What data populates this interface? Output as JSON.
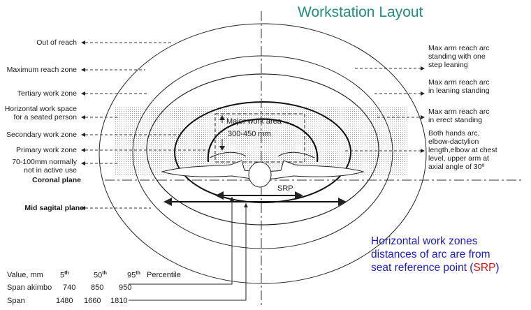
{
  "title": "Workstation Layout",
  "left_labels": [
    {
      "text": "Out of reach"
    },
    {
      "text": "Maximum reach zone"
    },
    {
      "text": "Tertiary work zone"
    },
    {
      "text": "Horizontal work space"
    },
    {
      "text": "for a seated person"
    },
    {
      "text": "Secondary work zone"
    },
    {
      "text": "Primary work zone"
    },
    {
      "text": "70-100mm normally"
    },
    {
      "text": "not in active use"
    },
    {
      "text": "Coronal plane"
    },
    {
      "text": "Mid sagital plane"
    }
  ],
  "right_labels": [
    {
      "lines": [
        "Max arm reach arc",
        "standing with one",
        "step leaning"
      ]
    },
    {
      "lines": [
        "Max arm reach arc",
        "in leaning standing"
      ]
    },
    {
      "lines": [
        "Max arm reach arc",
        "in erect standing"
      ]
    },
    {
      "lines": [
        "Both hands arc,",
        "elbow-dactylion",
        "length,elbow at chest",
        "level, upper arm at",
        "axial angle of 30º"
      ]
    }
  ],
  "inner": {
    "major_work_area": "Major work area",
    "range": "300-450 mm",
    "srp": "SRP"
  },
  "table": {
    "header": {
      "label": "Value, mm",
      "p5": "5",
      "p50": "50",
      "p95": "95",
      "sup": "th",
      "suffix": "Percentile"
    },
    "rows": [
      {
        "label": "Span akimbo",
        "p5": "740",
        "p50": "850",
        "p95": "950"
      },
      {
        "label": "Span",
        "p5": "1480",
        "p50": "1660",
        "p95": "1810"
      }
    ]
  },
  "note": {
    "line1": "Horizontal work zones",
    "line2": "distances of arc are from",
    "line3_pre": "seat reference point (",
    "line3_srp": "SRP",
    "line3_post": ")"
  }
}
